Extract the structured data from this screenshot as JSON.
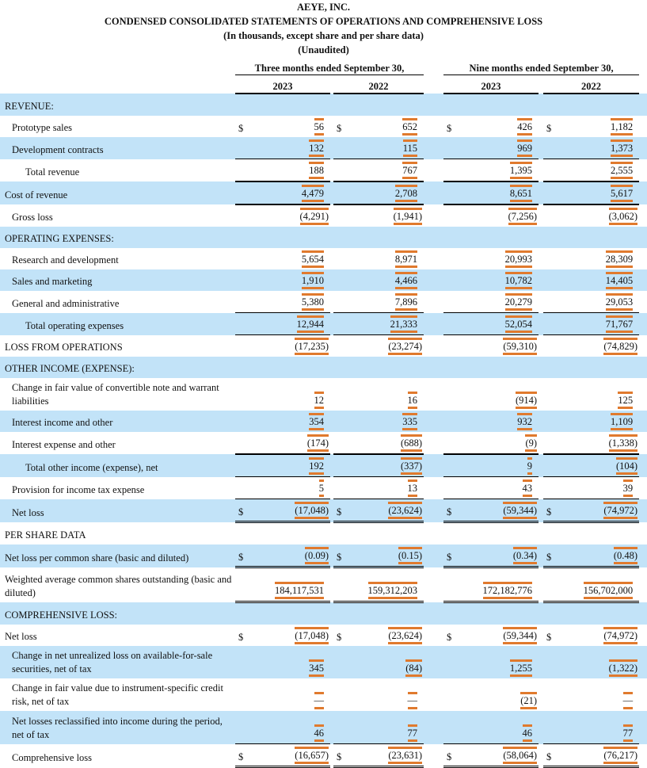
{
  "header": {
    "company": "AEYE, INC.",
    "title": "CONDENSED CONSOLIDATED STATEMENTS OF OPERATIONS AND COMPREHENSIVE LOSS",
    "subtitle": "(In thousands, except share and per share data)",
    "note": "(Unaudited)"
  },
  "periods": {
    "three_months": "Three months ended September 30,",
    "nine_months": "Nine months ended September 30,",
    "years": [
      "2023",
      "2022",
      "2023",
      "2022"
    ]
  },
  "currency_symbol": "$",
  "highlight_color": "#e07a2e",
  "row_band_color": "#c2e3f8",
  "rows": [
    {
      "label": "REVENUE:",
      "values": [
        "",
        "",
        "",
        ""
      ]
    },
    {
      "label": "Prototype sales",
      "values": [
        "56",
        "652",
        "426",
        "1,182"
      ]
    },
    {
      "label": "Development contracts",
      "values": [
        "132",
        "115",
        "969",
        "1,373"
      ]
    },
    {
      "label": "Total revenue",
      "values": [
        "188",
        "767",
        "1,395",
        "2,555"
      ]
    },
    {
      "label": "Cost of revenue",
      "values": [
        "4,479",
        "2,708",
        "8,651",
        "5,617"
      ]
    },
    {
      "label": "Gross loss",
      "values": [
        "(4,291)",
        "(1,941)",
        "(7,256)",
        "(3,062)"
      ]
    },
    {
      "label": "OPERATING EXPENSES:",
      "values": [
        "",
        "",
        "",
        ""
      ]
    },
    {
      "label": "Research and development",
      "values": [
        "5,654",
        "8,971",
        "20,993",
        "28,309"
      ]
    },
    {
      "label": "Sales and marketing",
      "values": [
        "1,910",
        "4,466",
        "10,782",
        "14,405"
      ]
    },
    {
      "label": "General and administrative",
      "values": [
        "5,380",
        "7,896",
        "20,279",
        "29,053"
      ]
    },
    {
      "label": "Total operating expenses",
      "values": [
        "12,944",
        "21,333",
        "52,054",
        "71,767"
      ]
    },
    {
      "label": "LOSS FROM OPERATIONS",
      "values": [
        "(17,235)",
        "(23,274)",
        "(59,310)",
        "(74,829)"
      ]
    },
    {
      "label": "OTHER INCOME (EXPENSE):",
      "values": [
        "",
        "",
        "",
        ""
      ]
    },
    {
      "label": "Change in fair value of convertible note and warrant liabilities",
      "values": [
        "12",
        "16",
        "(914)",
        "125"
      ]
    },
    {
      "label": "Interest income and other",
      "values": [
        "354",
        "335",
        "932",
        "1,109"
      ]
    },
    {
      "label": "Interest expense and other",
      "values": [
        "(174)",
        "(688)",
        "(9)",
        "(1,338)"
      ]
    },
    {
      "label": "Total other income (expense), net",
      "values": [
        "192",
        "(337)",
        "9",
        "(104)"
      ]
    },
    {
      "label": "Provision for income tax expense",
      "values": [
        "5",
        "13",
        "43",
        "39"
      ]
    },
    {
      "label": "Net loss",
      "values": [
        "(17,048)",
        "(23,624)",
        "(59,344)",
        "(74,972)"
      ]
    },
    {
      "label": "PER SHARE DATA",
      "values": [
        "",
        "",
        "",
        ""
      ]
    },
    {
      "label": "Net loss per common share (basic and diluted)",
      "values": [
        "(0.09)",
        "(0.15)",
        "(0.34)",
        "(0.48)"
      ]
    },
    {
      "label": "Weighted average common shares outstanding (basic and diluted)",
      "values": [
        "184,117,531",
        "159,312,203",
        "172,182,776",
        "156,702,000"
      ]
    },
    {
      "label": "COMPREHENSIVE LOSS:",
      "values": [
        "",
        "",
        "",
        ""
      ]
    },
    {
      "label": "Net loss",
      "values": [
        "(17,048)",
        "(23,624)",
        "(59,344)",
        "(74,972)"
      ]
    },
    {
      "label": "Change in net unrealized loss on available-for-sale securities, net of tax",
      "values": [
        "345",
        "(84)",
        "1,255",
        "(1,322)"
      ]
    },
    {
      "label": "Change in fair value due to instrument-specific credit risk, net of tax",
      "values": [
        "—",
        "—",
        "(21)",
        "—"
      ]
    },
    {
      "label": "Net losses reclassified into income during the period, net of tax",
      "values": [
        "46",
        "77",
        "46",
        "77"
      ]
    },
    {
      "label": "Comprehensive loss",
      "values": [
        "(16,657)",
        "(23,631)",
        "(58,064)",
        "(76,217)"
      ]
    }
  ]
}
